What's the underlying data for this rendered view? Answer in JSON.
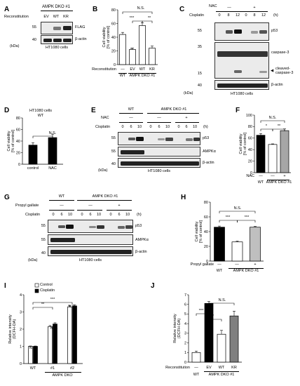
{
  "panelA": {
    "label": "A",
    "header": "AMPK DKO #1",
    "reconstitution_label": "Reconstitution",
    "lanes": [
      "EV",
      "WT",
      "KR"
    ],
    "mw": [
      "55",
      "40"
    ],
    "kda": "(kDa)",
    "blots": [
      "FLAG",
      "β-actin"
    ],
    "cells": "HT1080 cells"
  },
  "panelB": {
    "label": "B",
    "ns": "N.S.",
    "stars": [
      "***",
      "**"
    ],
    "bar_star": "**",
    "recon_label": "Reconstitution",
    "lanes": [
      "—",
      "EV",
      "WT",
      "KR"
    ],
    "groups": [
      "WT",
      "AMPK DKO #1"
    ]
  },
  "panelC": {
    "label": "C",
    "nac_label": "NAC",
    "nac_vals": [
      "—",
      "+"
    ],
    "cis_label": "Cisplatin",
    "times": [
      "0",
      "8",
      "12",
      "0",
      "8",
      "12"
    ],
    "unit": "(h)",
    "mw": [
      "55",
      "35",
      "15",
      "40"
    ],
    "kda": "(kDa)",
    "blots": [
      "p53",
      "caspase-3",
      "cleaved-",
      "caspase-3",
      "β-actin"
    ],
    "cells": "HT1080 cells"
  },
  "panelD": {
    "label": "D",
    "title1": "HT1080 cells",
    "title2": "WT",
    "ns": "N.S.",
    "categories": [
      "control",
      "NAC"
    ]
  },
  "panelE": {
    "label": "E",
    "wt": "WT",
    "dko": "AMPK DKO #1",
    "nac_label": "NAC",
    "nac_vals": [
      "—",
      "—",
      "+"
    ],
    "cis_label": "Cisplatin",
    "times": [
      "0",
      "6",
      "10",
      "0",
      "6",
      "10",
      "0",
      "6",
      "10"
    ],
    "unit": "(h)",
    "mw": [
      "55",
      "55",
      "40"
    ],
    "kda": "(kDa)",
    "blots": [
      "p53",
      "AMPKα",
      "β-actin"
    ],
    "cells": "HT1080 cells"
  },
  "panelF": {
    "label": "F",
    "ns": "N.S.",
    "stars": [
      "*",
      "**"
    ],
    "nac_label": "NAC",
    "nac_vals": [
      "—",
      "—",
      "+"
    ],
    "groups": [
      "WT",
      "AMPK DKO #1"
    ]
  },
  "panelG": {
    "label": "G",
    "wt": "WT",
    "dko": "AMPK DKO #1",
    "pg_label": "Propyl gallate",
    "pg_vals": [
      "—",
      "—",
      "+"
    ],
    "cis_label": "Cisplatin",
    "times": [
      "0",
      "6",
      "10",
      "0",
      "6",
      "10",
      "0",
      "6",
      "10"
    ],
    "unit": "(h)",
    "mw": [
      "55",
      "55",
      "40"
    ],
    "kda": "(kDa)",
    "blots": [
      "p53",
      "AMPKα",
      "β-actin"
    ],
    "cells": "HT1080 cells"
  },
  "panelH": {
    "label": "H",
    "ns": "N.S.",
    "stars": [
      "***",
      "***"
    ],
    "pg_label": "Propyl gallate",
    "pg_vals": [
      "—",
      "—",
      "+"
    ],
    "groups": [
      "WT",
      "AMPK DKO #1"
    ]
  },
  "panelI": {
    "label": "I",
    "legend": [
      "Control",
      "Cisplatin"
    ],
    "ns": [
      "N.S.",
      "N.S.",
      "N.S."
    ],
    "stars": [
      "**",
      "***"
    ],
    "categories": [
      "WT",
      "#1",
      "#2"
    ],
    "group": "AMPK DKO"
  },
  "panelJ": {
    "label": "J",
    "stars": [
      "***",
      "**"
    ],
    "ns": "N.S.",
    "recon_label": "Reconstitution",
    "lanes": [
      "—",
      "EV",
      "WT",
      "KR"
    ],
    "groups": [
      "WT",
      "AMPK DKO #1"
    ]
  },
  "chart_data": [
    {
      "id": "B",
      "type": "bar",
      "ylabel": "Cell viability [% of control]",
      "ylim": [
        0,
        80
      ],
      "yticks": [
        0,
        20,
        40,
        60,
        80
      ],
      "categories": [
        "—",
        "EV",
        "WT",
        "KR"
      ],
      "values": [
        44,
        22,
        57,
        24
      ],
      "errors": [
        3,
        2,
        4,
        3
      ],
      "colors": [
        "#ffffff",
        "#ffffff",
        "#ffffff",
        "#ffffff"
      ]
    },
    {
      "id": "D",
      "type": "bar",
      "ylabel": "Cell viability [% of control]",
      "ylim": [
        0,
        80
      ],
      "yticks": [
        0,
        20,
        40,
        60,
        80
      ],
      "categories": [
        "control",
        "NAC"
      ],
      "values": [
        33,
        46
      ],
      "errors": [
        4,
        6
      ],
      "colors": [
        "#000000",
        "#000000"
      ]
    },
    {
      "id": "F",
      "type": "bar",
      "ylabel": "Cell viability [% of control]",
      "ylim": [
        0,
        100
      ],
      "yticks": [
        0,
        20,
        40,
        60,
        80,
        100
      ],
      "categories": [
        "WT",
        "DKO",
        "DKO+NAC"
      ],
      "values": [
        65,
        49,
        73
      ],
      "errors": [
        3,
        1,
        3
      ],
      "colors": [
        "#000000",
        "#ffffff",
        "#a6a6a6"
      ]
    },
    {
      "id": "H",
      "type": "bar",
      "ylabel": "Cell viability [% of control]",
      "ylim": [
        0,
        80
      ],
      "yticks": [
        0,
        20,
        40,
        60,
        80
      ],
      "categories": [
        "WT",
        "DKO",
        "DKO+PG"
      ],
      "values": [
        46,
        26,
        46
      ],
      "errors": [
        1.5,
        1,
        1
      ],
      "colors": [
        "#000000",
        "#ffffff",
        "#bfbfbf"
      ]
    },
    {
      "id": "I",
      "type": "bar",
      "ylabel": "Relative intensity (DCFH-DA)",
      "ylim": [
        0,
        4
      ],
      "yticks": [
        0,
        1,
        2,
        3,
        4
      ],
      "categories": [
        "WT",
        "#1",
        "#2"
      ],
      "series": [
        {
          "name": "Control",
          "values": [
            1.0,
            2.15,
            3.3
          ],
          "errors": [
            0.02,
            0.06,
            0.06
          ],
          "color": "#ffffff"
        },
        {
          "name": "Cisplatin",
          "values": [
            1.0,
            2.3,
            3.35
          ],
          "errors": [
            0.02,
            0.07,
            0.06
          ],
          "color": "#000000"
        }
      ]
    },
    {
      "id": "J",
      "type": "bar",
      "ylabel": "Relative intensity (DCFH-DA)",
      "ylim": [
        0,
        7
      ],
      "yticks": [
        0,
        1,
        2,
        3,
        4,
        5,
        6,
        7
      ],
      "categories": [
        "—",
        "EV",
        "WT",
        "KR"
      ],
      "values": [
        1.0,
        6.1,
        2.9,
        4.8
      ],
      "errors": [
        0.15,
        0.2,
        0.4,
        0.5
      ],
      "colors": [
        "#ffffff",
        "#000000",
        "#ffffff",
        "#7f7f7f"
      ]
    }
  ]
}
